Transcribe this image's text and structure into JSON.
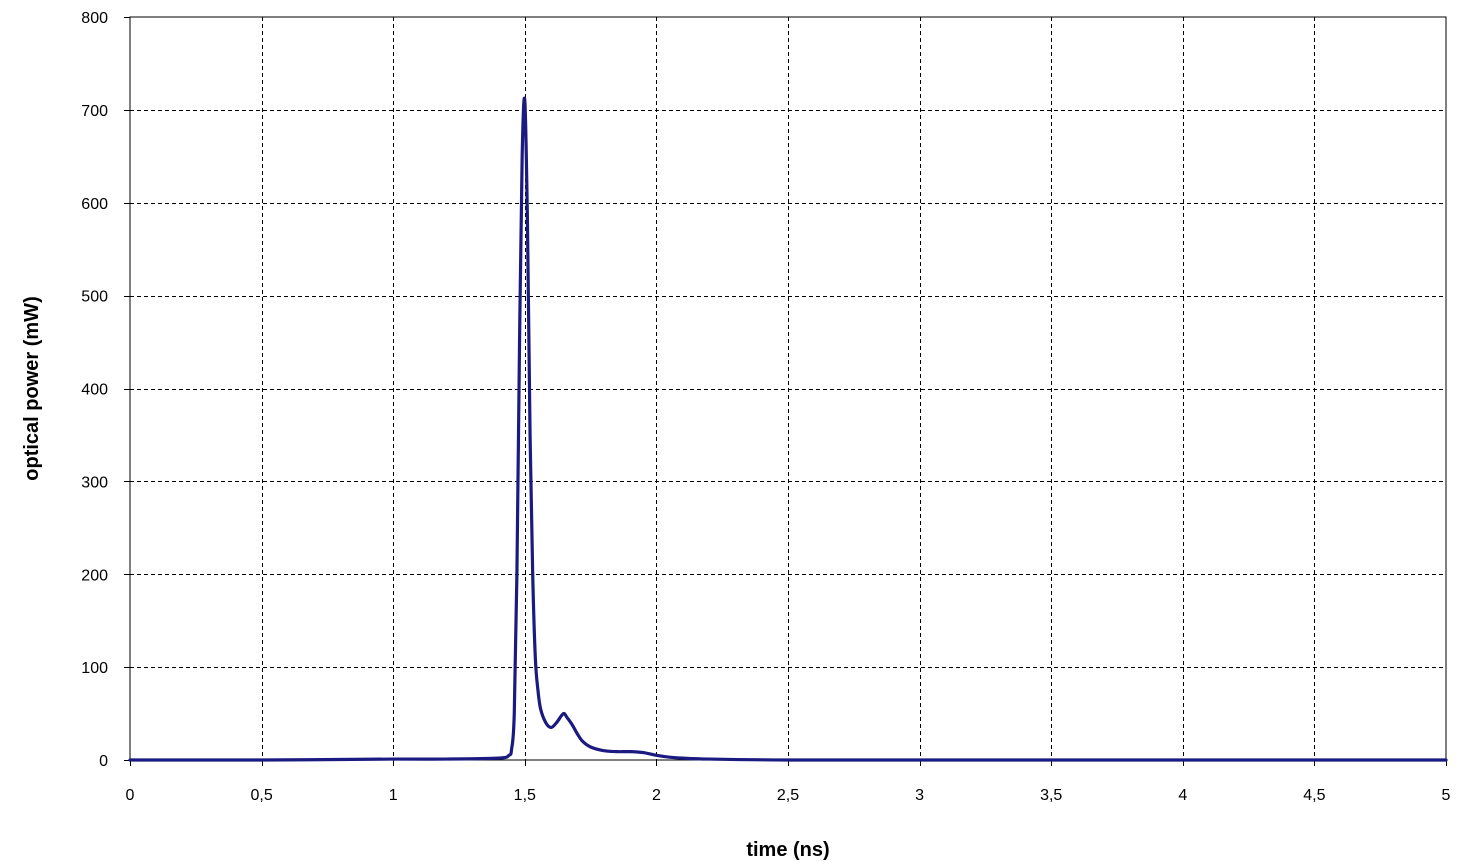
{
  "chart_data": {
    "type": "line",
    "title": "",
    "xlabel": "time (ns)",
    "ylabel": "optical power (mW)",
    "xlim": [
      0,
      5
    ],
    "ylim": [
      0,
      800
    ],
    "x_ticks": [
      0,
      0.5,
      1,
      1.5,
      2,
      2.5,
      3,
      3.5,
      4,
      4.5,
      5
    ],
    "x_tick_labels": [
      "0",
      "0,5",
      "1",
      "1,5",
      "2",
      "2,5",
      "3",
      "3,5",
      "4",
      "4,5",
      "5"
    ],
    "y_ticks": [
      0,
      100,
      200,
      300,
      400,
      500,
      600,
      700,
      800
    ],
    "y_tick_labels": [
      "0",
      "100",
      "200",
      "300",
      "400",
      "500",
      "600",
      "700",
      "800"
    ],
    "grid": true,
    "legend": "none",
    "series": [
      {
        "color": "#1a1a80",
        "x": [
          0,
          0.5,
          1.0,
          1.2,
          1.4,
          1.44,
          1.45,
          1.46,
          1.47,
          1.48,
          1.49,
          1.5,
          1.51,
          1.52,
          1.53,
          1.54,
          1.55,
          1.56,
          1.58,
          1.6,
          1.62,
          1.64,
          1.65,
          1.66,
          1.68,
          1.7,
          1.72,
          1.75,
          1.8,
          1.85,
          1.9,
          1.95,
          2.0,
          2.05,
          2.1,
          2.2,
          2.5,
          3.0,
          3.5,
          4.0,
          4.5,
          5.0
        ],
        "y": [
          0,
          0,
          1,
          1,
          2,
          5,
          12,
          50,
          200,
          450,
          650,
          710,
          580,
          350,
          200,
          110,
          75,
          55,
          40,
          35,
          40,
          48,
          50,
          46,
          38,
          28,
          20,
          14,
          10,
          9,
          9,
          8,
          5,
          3,
          2,
          1,
          0,
          0,
          0,
          0,
          0,
          0
        ]
      }
    ]
  }
}
